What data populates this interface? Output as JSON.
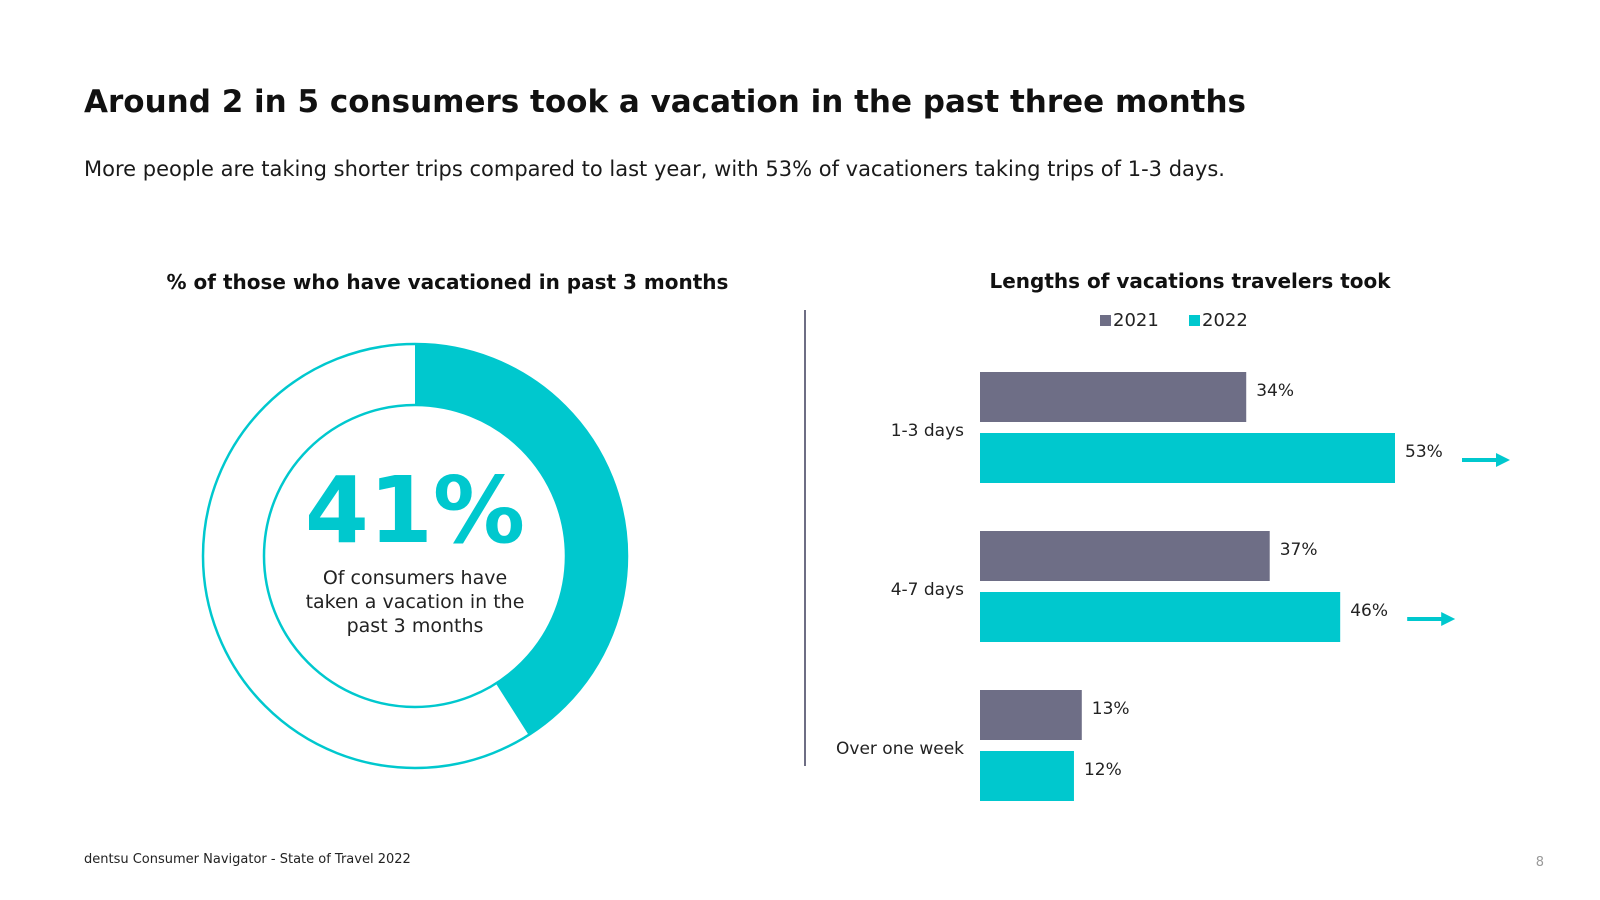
{
  "header": {
    "title": "Around 2 in 5 consumers took a vacation in the past three months",
    "subtitle": "More people are taking shorter trips compared to last year, with 53% of vacationers taking trips of 1-3 days."
  },
  "colors": {
    "teal": "#00C8CE",
    "gray": "#6E6E86",
    "text": "#111111"
  },
  "chart_data": [
    {
      "type": "pie",
      "title": "% of those who have vacationed in past 3 months",
      "value": 41,
      "big_label": "41%",
      "caption_lines": [
        "Of consumers have",
        "taken a vacation in the",
        "past 3 months"
      ]
    },
    {
      "type": "bar",
      "orientation": "horizontal",
      "title": "Lengths of vacations travelers took",
      "categories": [
        "1-3 days",
        "4-7 days",
        "Over one week"
      ],
      "series": [
        {
          "name": "2021",
          "values": [
            34,
            37,
            13
          ],
          "labels": [
            "34%",
            "37%",
            "13%"
          ]
        },
        {
          "name": "2022",
          "values": [
            53,
            46,
            12
          ],
          "labels": [
            "53%",
            "46%",
            "12%"
          ]
        }
      ],
      "legend": [
        "2021",
        "2022"
      ],
      "xlim": [
        0,
        53
      ],
      "trend_arrows": [
        "up",
        "up",
        "none"
      ]
    }
  ],
  "footer": {
    "source": "dentsu Consumer Navigator - State of Travel 2022",
    "page": "8"
  }
}
